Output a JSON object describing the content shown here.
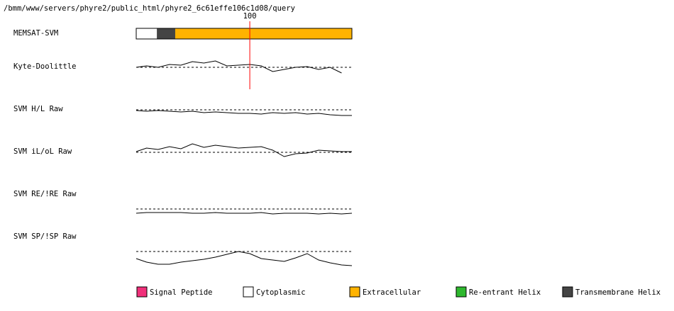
{
  "path": "/bmm/www/servers/phyre2/public_html/phyre2_6c61effe106c1d08/query",
  "sequence_length": 189,
  "marker": {
    "position": 100,
    "label": "100",
    "color": "#ff0000"
  },
  "topology": {
    "label": "MEMSAT-SVM",
    "segments": [
      {
        "start": 1,
        "end": 19,
        "color": "#ffffff"
      },
      {
        "start": 19,
        "end": 35,
        "color": "#444444"
      },
      {
        "start": 35,
        "end": 189,
        "color": "#ffb300"
      }
    ]
  },
  "x": [
    1,
    10,
    20,
    30,
    40,
    50,
    60,
    70,
    80,
    90,
    100,
    110,
    120,
    130,
    140,
    150,
    160,
    170,
    180,
    189
  ],
  "tracks": [
    {
      "label": "Kyte-Doolittle",
      "values": [
        0,
        2,
        0,
        4,
        3,
        8,
        6,
        9,
        2,
        3,
        4,
        2,
        -6,
        -3,
        0,
        1,
        -3,
        0,
        -8,
        null
      ]
    },
    {
      "label": "SVM H/L Raw",
      "values": [
        -1,
        -2,
        -1,
        -2,
        -3,
        -2,
        -4,
        -3,
        -4,
        -5,
        -5,
        -6,
        -4,
        -5,
        -4,
        -6,
        -5,
        -7,
        -8,
        -8
      ]
    },
    {
      "label": "SVM iL/oL Raw",
      "values": [
        1,
        6,
        4,
        8,
        5,
        12,
        7,
        10,
        8,
        6,
        7,
        8,
        3,
        -6,
        -2,
        -1,
        3,
        2,
        1,
        1
      ]
    },
    {
      "label": "SVM RE/!RE Raw",
      "values": [
        -6,
        -5,
        -5,
        -5,
        -5,
        -6,
        -6,
        -5,
        -6,
        -6,
        -6,
        -5,
        -7,
        -6,
        -6,
        -6,
        -7,
        -6,
        -7,
        -6
      ]
    },
    {
      "label": "SVM SP/!SP Raw",
      "values": [
        -10,
        -15,
        -18,
        -18,
        -15,
        -13,
        -11,
        -8,
        -4,
        0,
        -3,
        -10,
        -12,
        -14,
        -9,
        -3,
        -12,
        -16,
        -19,
        -20
      ]
    }
  ],
  "legend": [
    {
      "label": "Signal Peptide",
      "color": "#f0307a"
    },
    {
      "label": "Cytoplasmic",
      "color": "#ffffff"
    },
    {
      "label": "Extracellular",
      "color": "#ffb300"
    },
    {
      "label": "Re-entrant Helix",
      "color": "#2eb82e"
    },
    {
      "label": "Transmembrane Helix",
      "color": "#444444"
    }
  ]
}
